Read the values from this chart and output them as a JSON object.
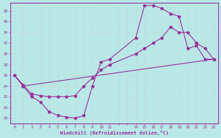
{
  "xlabel": "Windchill (Refroidissement éolien,°C)",
  "bg_color": "#b8e8e8",
  "line_color": "#993399",
  "grid_color": "#c0dede",
  "xlim": [
    -0.5,
    23.5
  ],
  "ylim": [
    17.0,
    39.5
  ],
  "ytick_vals": [
    18,
    20,
    22,
    24,
    26,
    28,
    30,
    32,
    34,
    36,
    38
  ],
  "line1_x": [
    0,
    1,
    2,
    3,
    4,
    5,
    6,
    7,
    8,
    9,
    10,
    11,
    14,
    15,
    16,
    17,
    18,
    19,
    20,
    21,
    22,
    23
  ],
  "line1_y": [
    26,
    24,
    22,
    21,
    19.2,
    18.5,
    18.2,
    18,
    18.5,
    24,
    28.5,
    29,
    33,
    39,
    39,
    38.5,
    37.5,
    37,
    31,
    31.5,
    29,
    29
  ],
  "line2_x": [
    0,
    1,
    2,
    3,
    4,
    5,
    6,
    7,
    8,
    9,
    10,
    11,
    14,
    15,
    16,
    17,
    18,
    19,
    20,
    21,
    22,
    23
  ],
  "line2_y": [
    26,
    24.2,
    22.5,
    22.2,
    22,
    22,
    22,
    22.2,
    24,
    25.5,
    27,
    28,
    30,
    31,
    32,
    33,
    35,
    34,
    34,
    32,
    31,
    29
  ],
  "line3_x": [
    0,
    1,
    23
  ],
  "line3_y": [
    26,
    24,
    29
  ]
}
